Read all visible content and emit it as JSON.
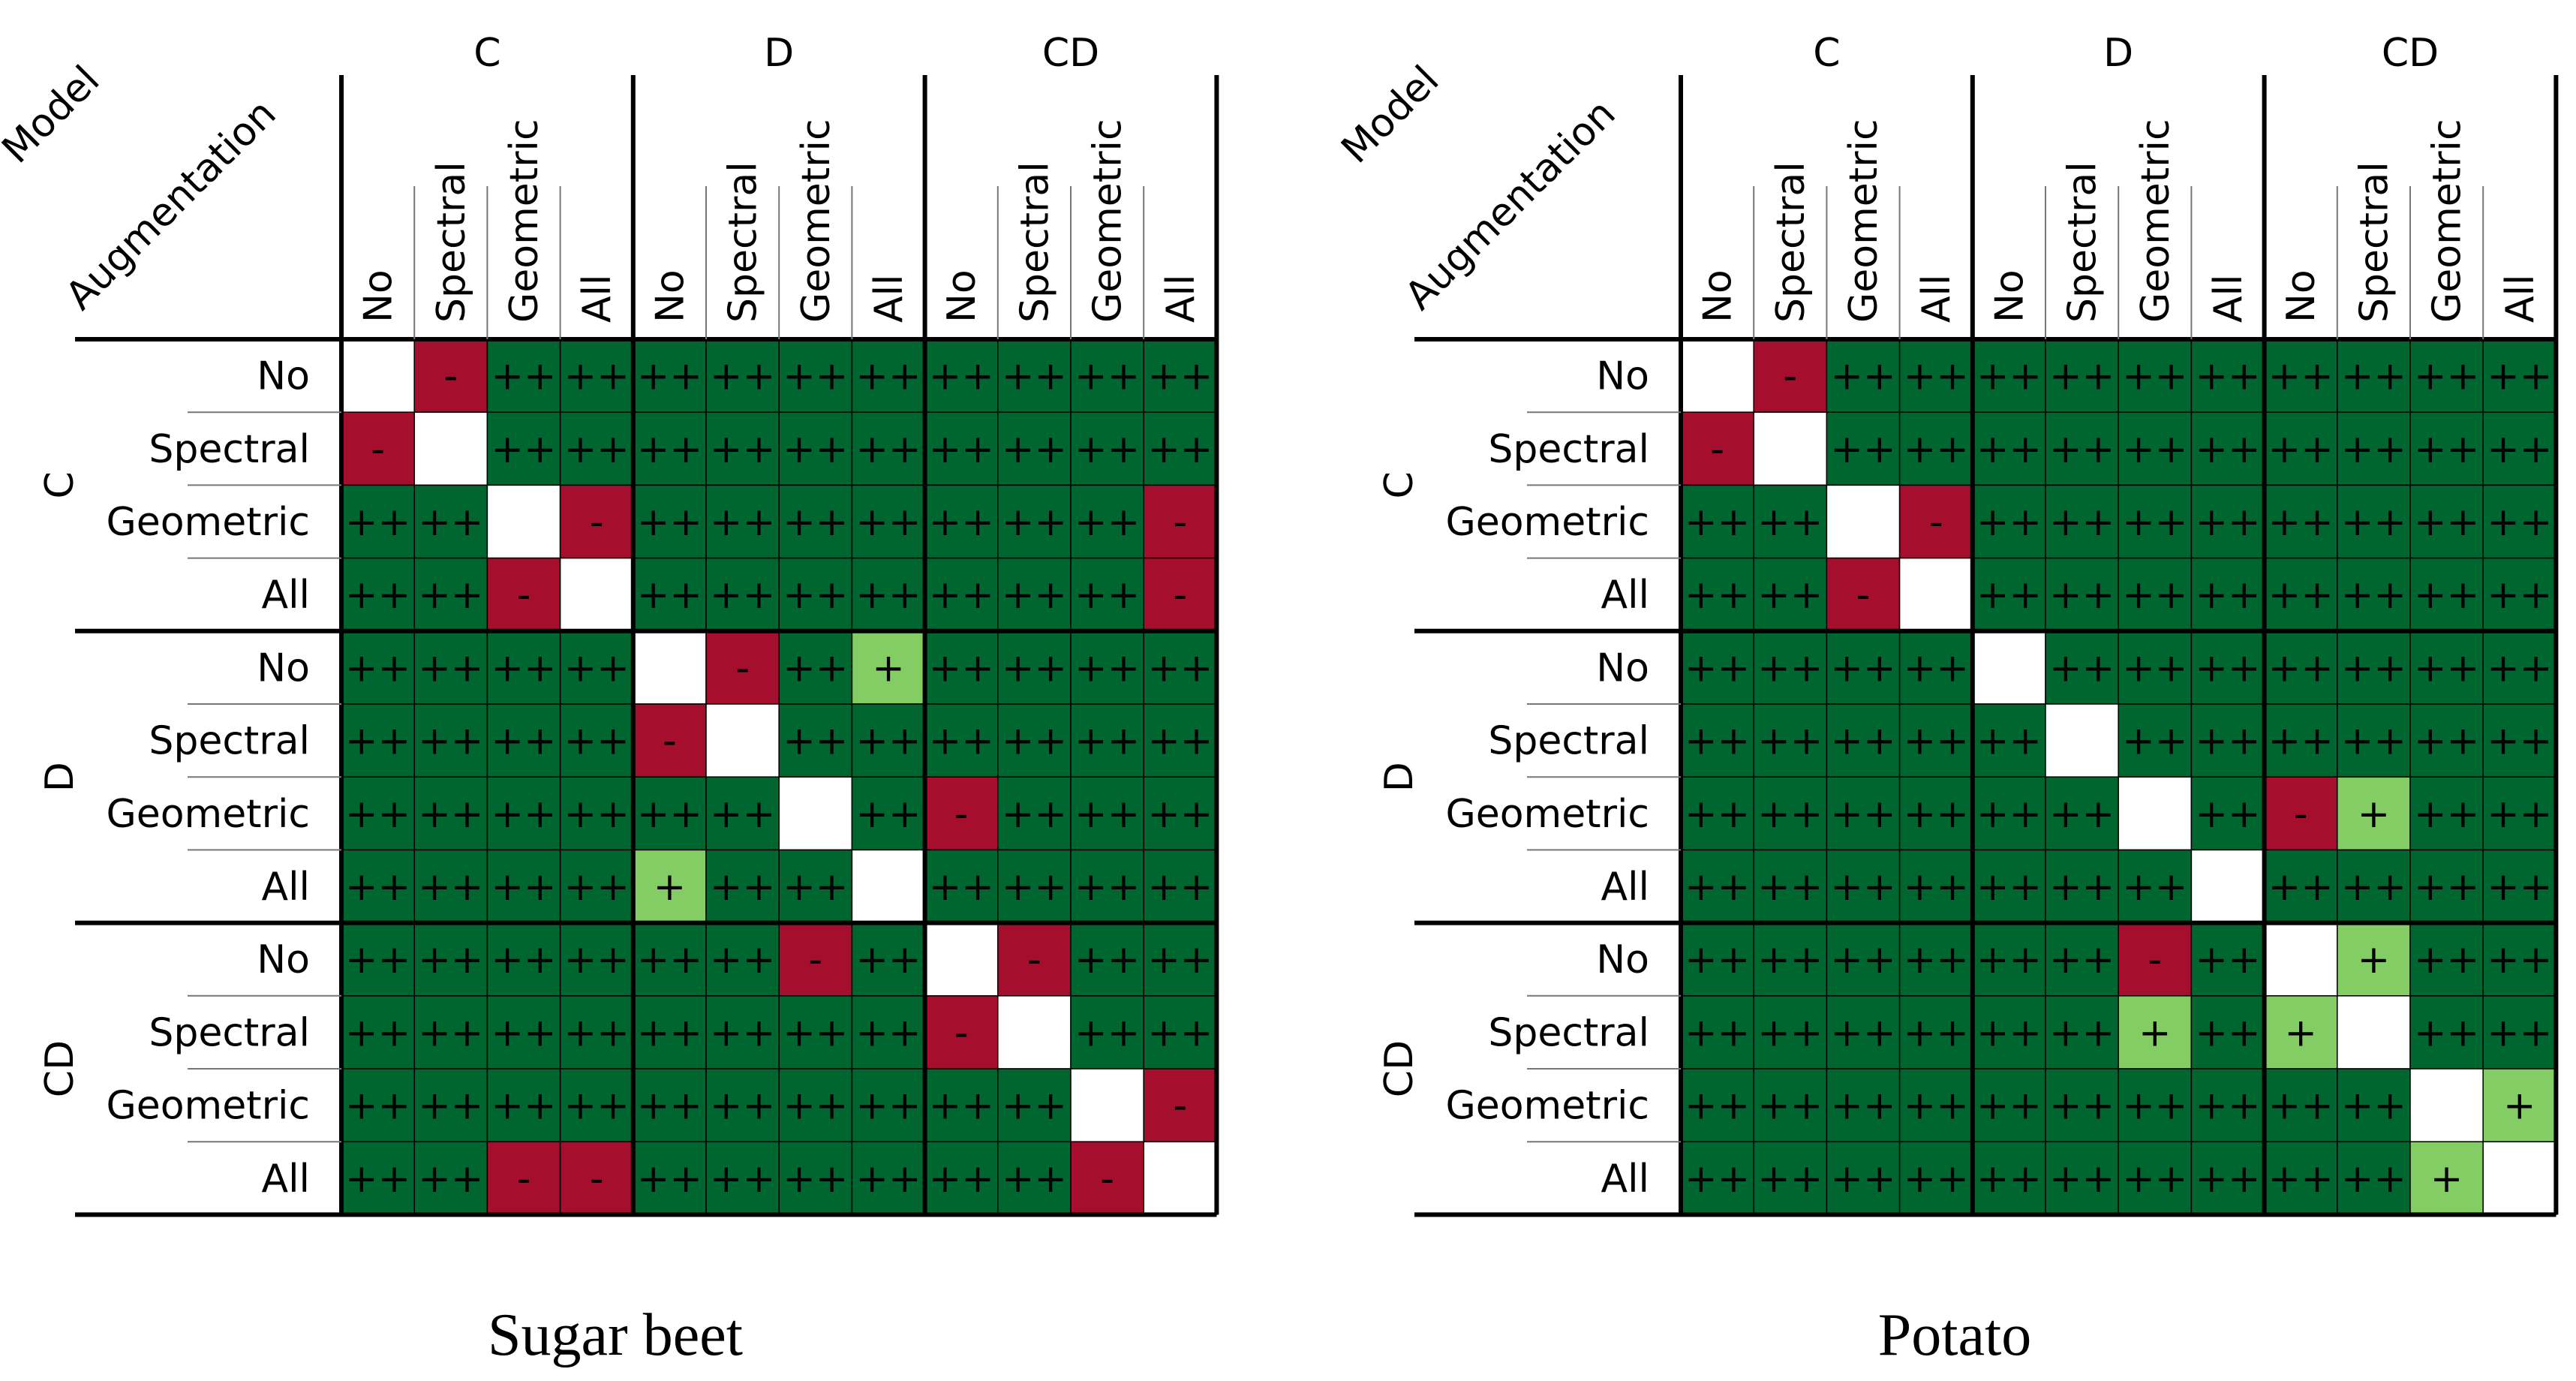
{
  "colors": {
    "strong_positive": "#006630",
    "positive": "#84CC64",
    "negative": "#A50E2D",
    "diagonal": "#FFFFFF",
    "grid": "#000000"
  },
  "legend_note": "Cell symbols: '++' dark green, '+' light green, '-' red, empty diagonal white",
  "chart_data": [
    {
      "type": "heatmap",
      "title": "Sugar beet",
      "corner_labels": {
        "model": "Model",
        "augmentation": "Augmentation"
      },
      "model_groups": [
        "C",
        "D",
        "CD"
      ],
      "augmentations": [
        "No",
        "Spectral",
        "Geometric",
        "All"
      ],
      "matrix": [
        [
          "",
          "-",
          "++",
          "++",
          "++",
          "++",
          "++",
          "++",
          "++",
          "++",
          "++",
          "++"
        ],
        [
          "-",
          "",
          "++",
          "++",
          "++",
          "++",
          "++",
          "++",
          "++",
          "++",
          "++",
          "++"
        ],
        [
          "++",
          "++",
          "",
          "-",
          "++",
          "++",
          "++",
          "++",
          "++",
          "++",
          "++",
          "-"
        ],
        [
          "++",
          "++",
          "-",
          "",
          "++",
          "++",
          "++",
          "++",
          "++",
          "++",
          "++",
          "-"
        ],
        [
          "++",
          "++",
          "++",
          "++",
          "",
          "-",
          "++",
          "+",
          "++",
          "++",
          "++",
          "++"
        ],
        [
          "++",
          "++",
          "++",
          "++",
          "-",
          "",
          "++",
          "++",
          "++",
          "++",
          "++",
          "++"
        ],
        [
          "++",
          "++",
          "++",
          "++",
          "++",
          "++",
          "",
          "++",
          "-",
          "++",
          "++",
          "++"
        ],
        [
          "++",
          "++",
          "++",
          "++",
          "+",
          "++",
          "++",
          "",
          "++",
          "++",
          "++",
          "++"
        ],
        [
          "++",
          "++",
          "++",
          "++",
          "++",
          "++",
          "-",
          "++",
          "",
          "-",
          "++",
          "++"
        ],
        [
          "++",
          "++",
          "++",
          "++",
          "++",
          "++",
          "++",
          "++",
          "-",
          "",
          "++",
          "++"
        ],
        [
          "++",
          "++",
          "++",
          "++",
          "++",
          "++",
          "++",
          "++",
          "++",
          "++",
          "",
          "-"
        ],
        [
          "++",
          "++",
          "-",
          "-",
          "++",
          "++",
          "++",
          "++",
          "++",
          "++",
          "-",
          ""
        ]
      ]
    },
    {
      "type": "heatmap",
      "title": "Potato",
      "corner_labels": {
        "model": "Model",
        "augmentation": "Augmentation"
      },
      "model_groups": [
        "C",
        "D",
        "CD"
      ],
      "augmentations": [
        "No",
        "Spectral",
        "Geometric",
        "All"
      ],
      "matrix": [
        [
          "",
          "-",
          "++",
          "++",
          "++",
          "++",
          "++",
          "++",
          "++",
          "++",
          "++",
          "++"
        ],
        [
          "-",
          "",
          "++",
          "++",
          "++",
          "++",
          "++",
          "++",
          "++",
          "++",
          "++",
          "++"
        ],
        [
          "++",
          "++",
          "",
          "-",
          "++",
          "++",
          "++",
          "++",
          "++",
          "++",
          "++",
          "++"
        ],
        [
          "++",
          "++",
          "-",
          "",
          "++",
          "++",
          "++",
          "++",
          "++",
          "++",
          "++",
          "++"
        ],
        [
          "++",
          "++",
          "++",
          "++",
          "",
          "++",
          "++",
          "++",
          "++",
          "++",
          "++",
          "++"
        ],
        [
          "++",
          "++",
          "++",
          "++",
          "++",
          "",
          "++",
          "++",
          "++",
          "++",
          "++",
          "++"
        ],
        [
          "++",
          "++",
          "++",
          "++",
          "++",
          "++",
          "",
          "++",
          "-",
          "+",
          "++",
          "++"
        ],
        [
          "++",
          "++",
          "++",
          "++",
          "++",
          "++",
          "++",
          "",
          "++",
          "++",
          "++",
          "++"
        ],
        [
          "++",
          "++",
          "++",
          "++",
          "++",
          "++",
          "-",
          "++",
          "",
          "+",
          "++",
          "++"
        ],
        [
          "++",
          "++",
          "++",
          "++",
          "++",
          "++",
          "+",
          "++",
          "+",
          "",
          "++",
          "++"
        ],
        [
          "++",
          "++",
          "++",
          "++",
          "++",
          "++",
          "++",
          "++",
          "++",
          "++",
          "",
          "+"
        ],
        [
          "++",
          "++",
          "++",
          "++",
          "++",
          "++",
          "++",
          "++",
          "++",
          "++",
          "+",
          ""
        ]
      ]
    }
  ]
}
